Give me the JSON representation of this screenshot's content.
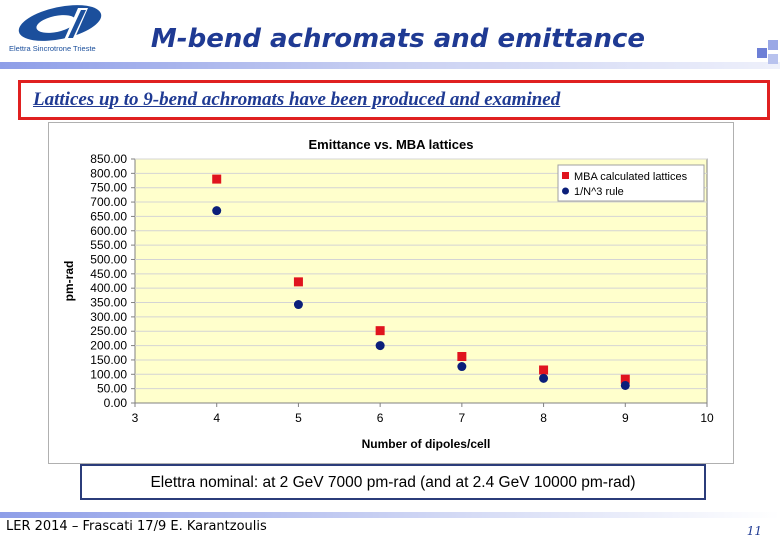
{
  "header": {
    "logo_text": "Elettra Sincrotrone Trieste",
    "title": "M-bend achromats and emittance"
  },
  "subtitle": "Lattices up to 9-bend achromats have been produced and examined",
  "note": "Elettra nominal:  at 2 GeV  7000  pm-rad  (and at 2.4 GeV 10000  pm-rad)",
  "footer": {
    "left_text": "LER 2014 – Frascati 17/9    E. Karantzoulis",
    "page_number": "11"
  },
  "colors": {
    "title": "#1f3a93",
    "plot_bg": "#ffffcc",
    "grid": "#d4d4d4",
    "series_mba": "#e0141e",
    "series_rule": "#0b1f7a",
    "border_red": "#e02020"
  },
  "chart_data": {
    "type": "scatter",
    "title": "Emittance vs. MBA lattices",
    "xlabel": "Number of dipoles/cell",
    "ylabel": "pm-rad",
    "xlim": [
      3,
      10
    ],
    "ylim": [
      0,
      850
    ],
    "x_ticks": [
      "3",
      "4",
      "5",
      "6",
      "7",
      "8",
      "9",
      "10"
    ],
    "y_ticks": [
      "0.00",
      "50.00",
      "100.00",
      "150.00",
      "200.00",
      "250.00",
      "300.00",
      "350.00",
      "400.00",
      "450.00",
      "500.00",
      "550.00",
      "600.00",
      "650.00",
      "700.00",
      "750.00",
      "800.00",
      "850.00"
    ],
    "grid": true,
    "legend_position": "top-right",
    "series": [
      {
        "name": "MBA calculated lattices",
        "marker": "square",
        "color": "#e0141e",
        "x": [
          4,
          5,
          6,
          7,
          8,
          9
        ],
        "y": [
          780,
          422,
          252,
          162,
          115,
          83
        ]
      },
      {
        "name": "1/N^3 rule",
        "marker": "circle",
        "color": "#0b1f7a",
        "x": [
          4,
          5,
          6,
          7,
          8,
          9
        ],
        "y": [
          670,
          343,
          200,
          127,
          86,
          61
        ]
      }
    ]
  }
}
